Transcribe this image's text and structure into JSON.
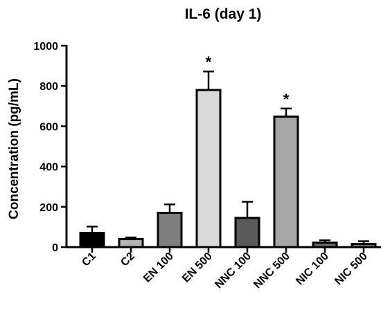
{
  "chart_data": {
    "type": "bar",
    "title": "IL-6 (day 1)",
    "xlabel": "",
    "ylabel": "Concentration (pg/mL)",
    "ylim": [
      0,
      1000
    ],
    "yticks": [
      0,
      200,
      400,
      600,
      800,
      1000
    ],
    "categories": [
      "C1",
      "C2",
      "EN 100",
      "EN 500",
      "NNC 100",
      "NNC 500",
      "NIC 100",
      "NIC 500"
    ],
    "values": [
      70,
      40,
      170,
      780,
      145,
      648,
      22,
      15
    ],
    "errors": [
      32,
      8,
      42,
      92,
      80,
      40,
      12,
      14
    ],
    "colors": [
      "#000000",
      "#b3b3b3",
      "#7f7f7f",
      "#d9d9d9",
      "#595959",
      "#a6a6a6",
      "#6b6b6b",
      "#8c8c8c"
    ],
    "annotations": [
      {
        "category": "EN 500",
        "text": "*"
      },
      {
        "category": "NNC 500",
        "text": "*"
      }
    ],
    "grid": false,
    "legend": "none"
  }
}
